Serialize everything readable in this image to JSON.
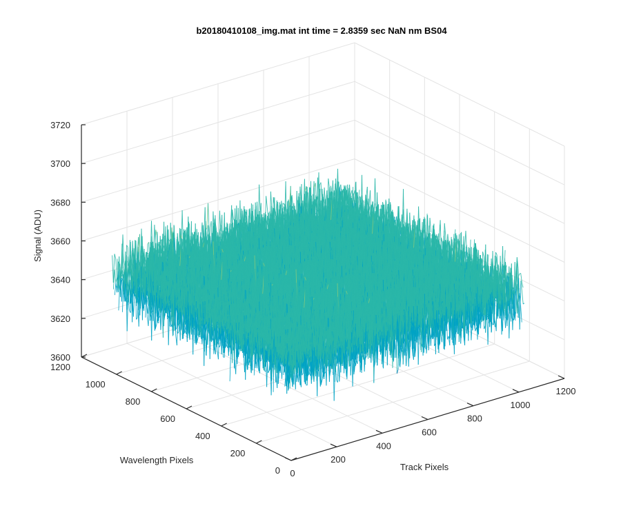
{
  "chart_data": {
    "type": "surface",
    "title": "b20180410108_img.mat int time = 2.8359 sec  NaN nm BS04",
    "xlabel": "Track Pixels",
    "ylabel": "Wavelength Pixels",
    "zlabel": "Signal (ADU)",
    "xlim": [
      0,
      1200
    ],
    "ylim": [
      0,
      1200
    ],
    "zlim": [
      3600,
      3720
    ],
    "x_ticks": [
      "0",
      "200",
      "400",
      "600",
      "800",
      "1000",
      "1200"
    ],
    "y_ticks": [
      "0",
      "200",
      "400",
      "600",
      "800",
      "1000",
      "1200"
    ],
    "z_ticks": [
      "3600",
      "3620",
      "3640",
      "3660",
      "3680",
      "3700",
      "3720"
    ],
    "data_extent": {
      "x_range": [
        0,
        1024
      ],
      "y_range": [
        0,
        1024
      ],
      "z_mean": 3650,
      "z_min": 3610,
      "z_max": 3705
    },
    "colormap": [
      "#0072bd",
      "#00a3c4",
      "#2ab7a9",
      "#7fc97f",
      "#d4b83c"
    ],
    "grid": true
  }
}
